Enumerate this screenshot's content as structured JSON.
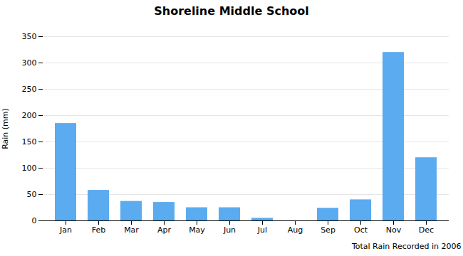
{
  "chart_data": {
    "type": "bar",
    "title": "Shoreline Middle School",
    "xlabel": "Total Rain Recorded in 2006",
    "ylabel": "Rain (mm)",
    "categories": [
      "Jan",
      "Feb",
      "Mar",
      "Apr",
      "May",
      "Jun",
      "Jul",
      "Aug",
      "Sep",
      "Oct",
      "Nov",
      "Dec"
    ],
    "values": [
      185,
      58,
      37,
      35,
      25,
      25,
      5,
      0,
      24,
      40,
      320,
      120
    ],
    "color": "#5aabf0",
    "ylim": [
      0,
      350
    ],
    "yticks": [
      0,
      50,
      100,
      150,
      200,
      250,
      300,
      350
    ],
    "grid": true
  }
}
